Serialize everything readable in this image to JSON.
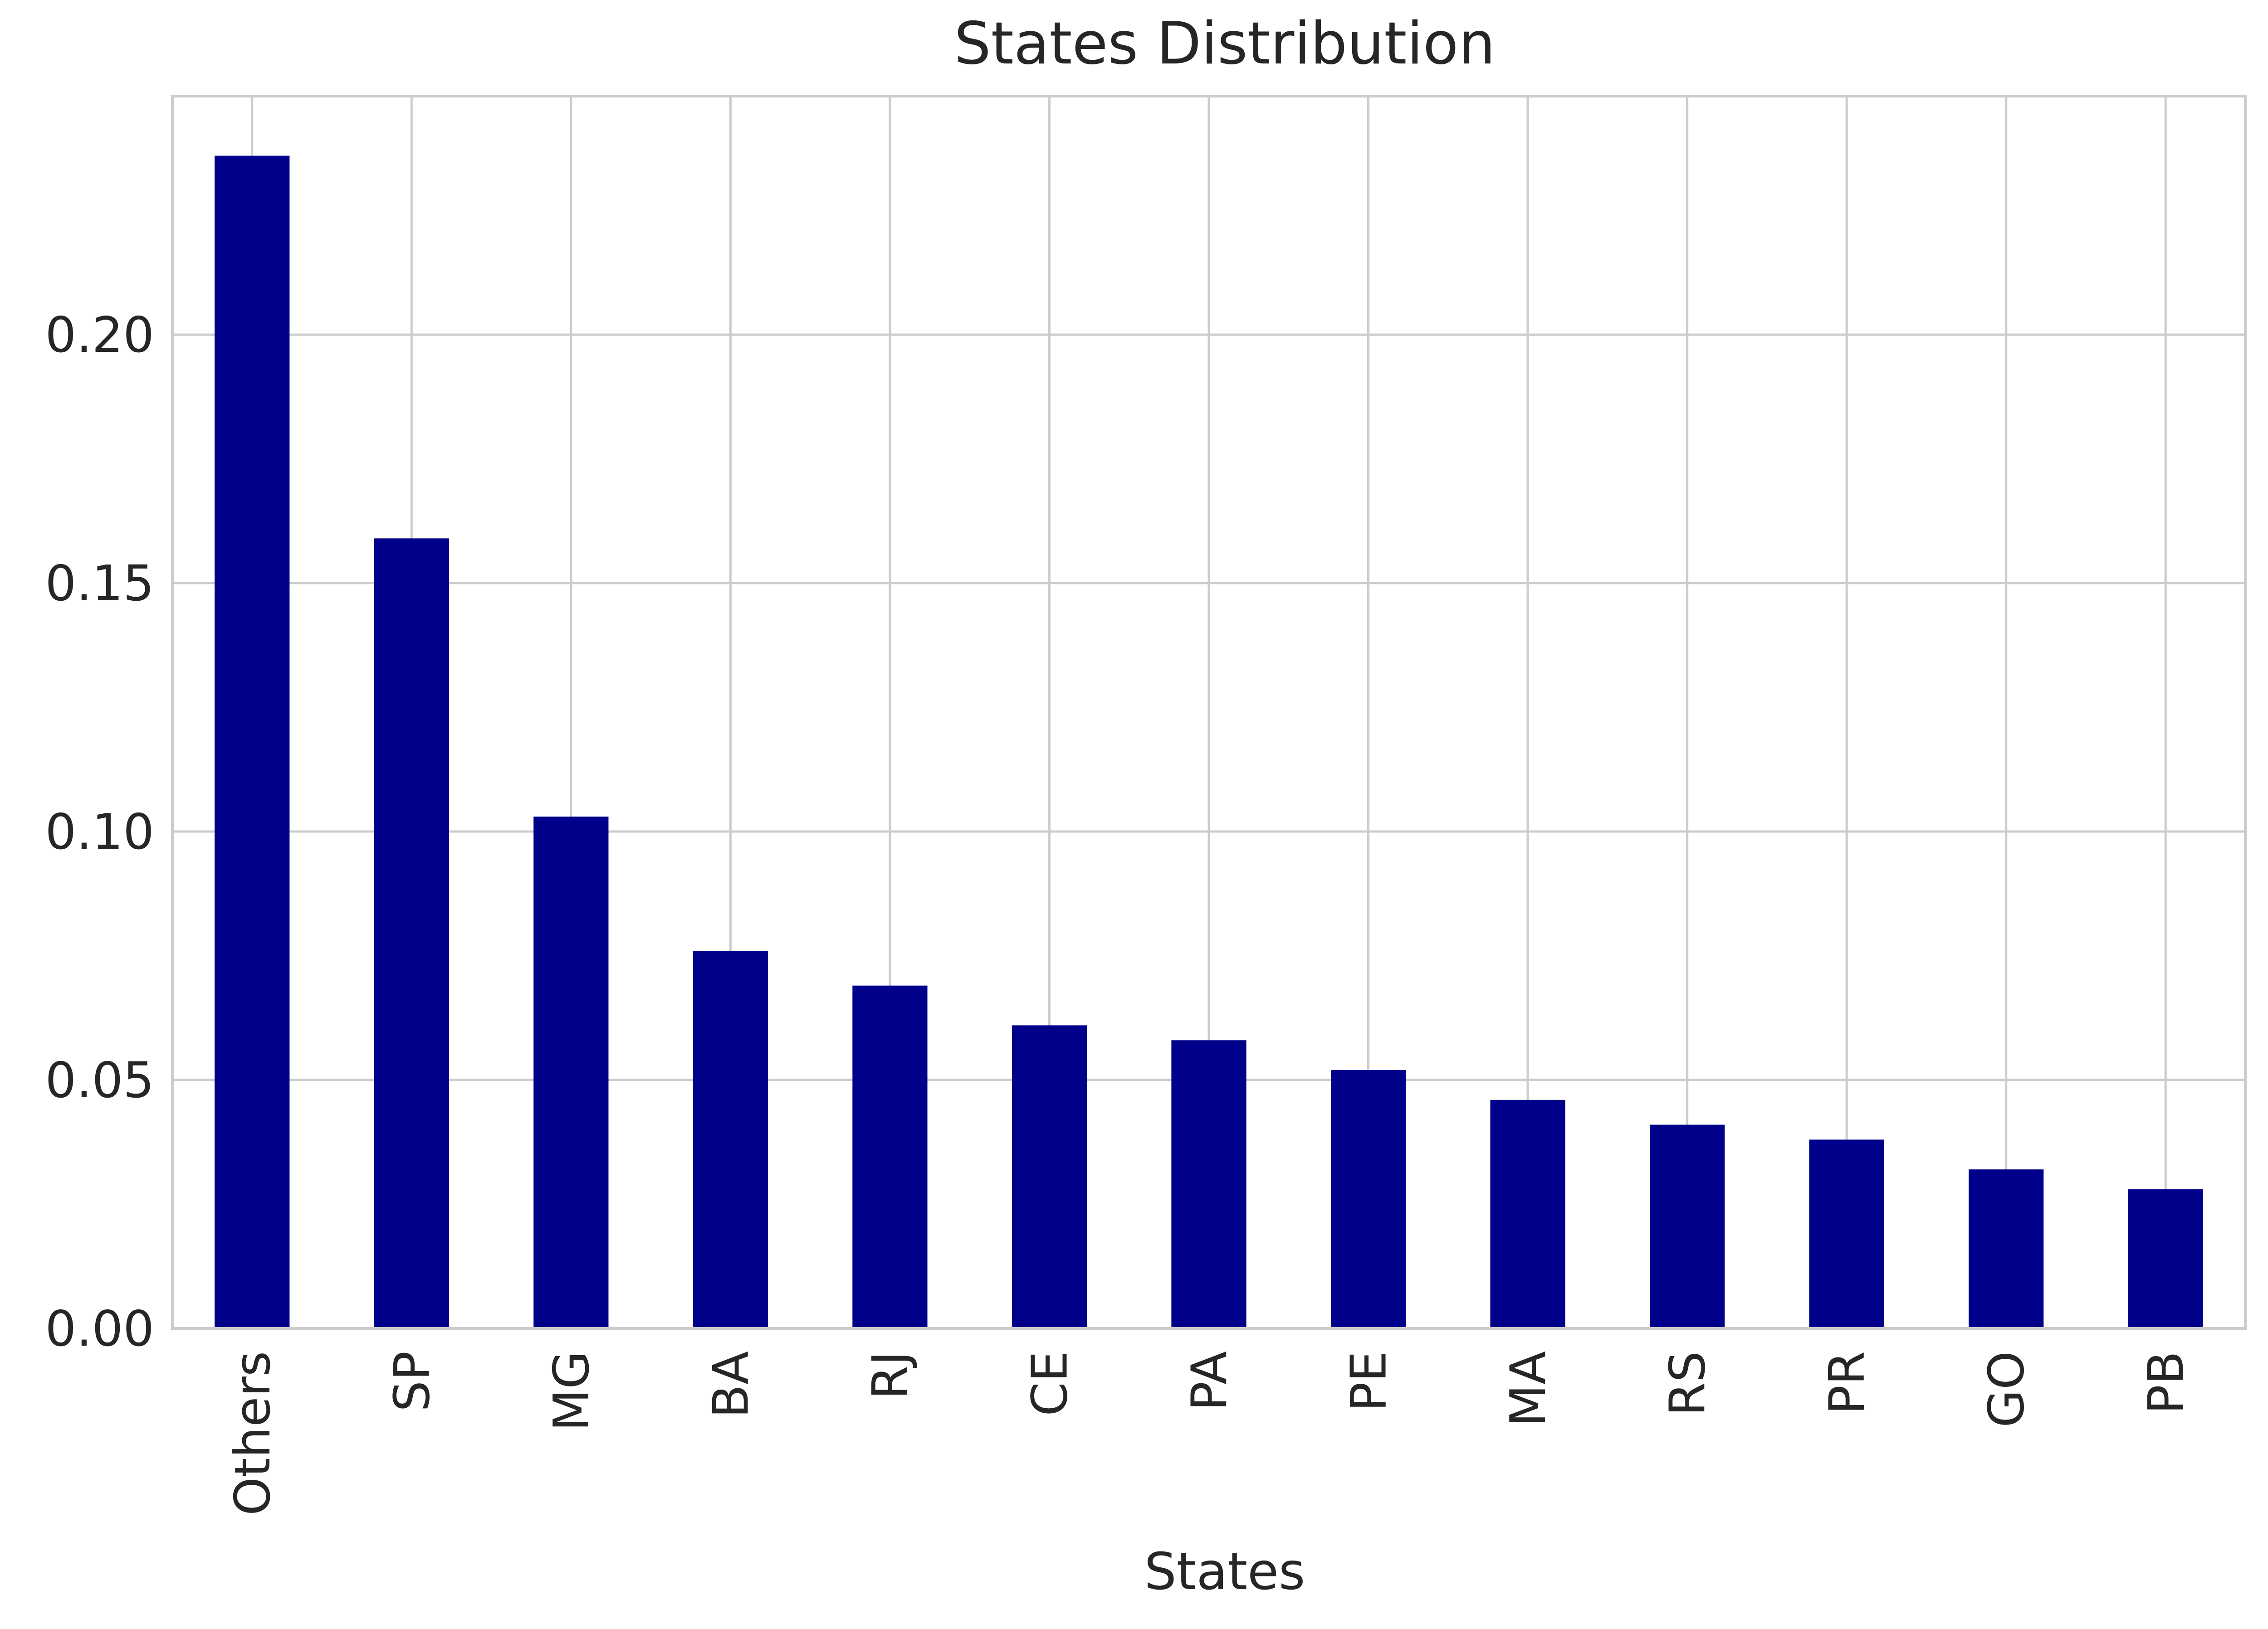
{
  "chart_data": {
    "type": "bar",
    "title": "States Distribution",
    "xlabel": "States",
    "ylabel": "",
    "categories": [
      "Others",
      "SP",
      "MG",
      "BA",
      "RJ",
      "CE",
      "PA",
      "PE",
      "MA",
      "RS",
      "PR",
      "GO",
      "PB"
    ],
    "values": [
      0.236,
      0.159,
      0.103,
      0.076,
      0.069,
      0.061,
      0.058,
      0.052,
      0.046,
      0.041,
      0.038,
      0.032,
      0.028
    ],
    "ylim": [
      0,
      0.248
    ],
    "yticks": [
      0.0,
      0.05,
      0.1,
      0.15,
      0.2
    ],
    "ytick_labels": [
      "0.00",
      "0.05",
      "0.10",
      "0.15",
      "0.20"
    ],
    "grid": true,
    "legend": "none",
    "colors": {
      "bar": "#00008b",
      "grid": "#cccccc",
      "axes_edge": "#cccccc",
      "text": "#262626",
      "background": "#ffffff"
    }
  }
}
